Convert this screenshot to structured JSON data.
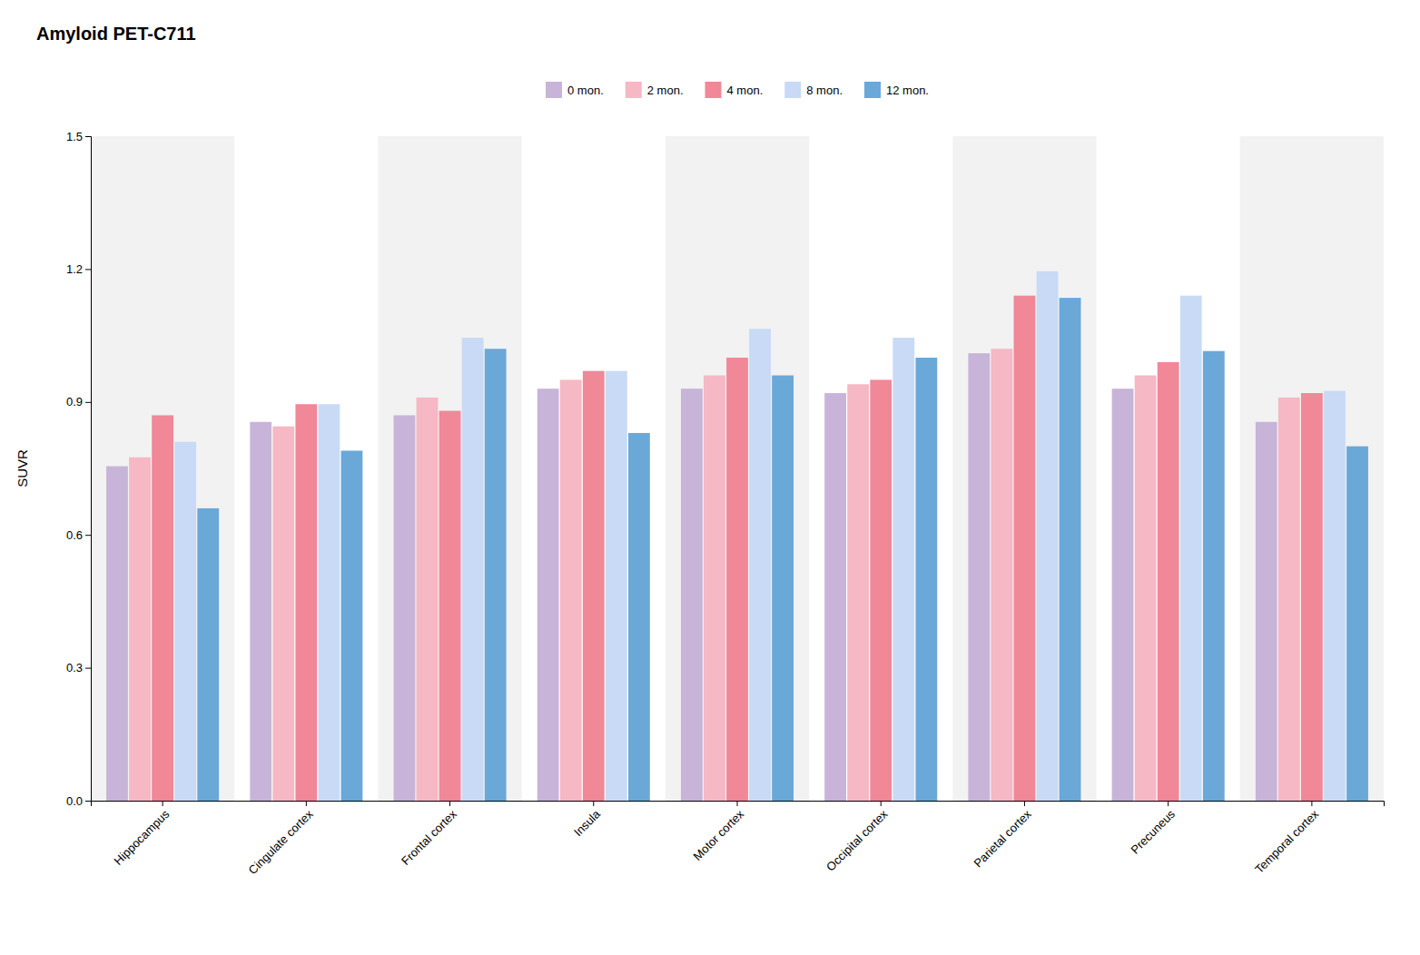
{
  "chart_data": {
    "type": "bar",
    "title": "Amyloid PET-C711",
    "ylabel": "SUVR",
    "categories": [
      "Hippocampus",
      "Cingulate cortex",
      "Frontal cortex",
      "Insula",
      "Motor cortex",
      "Occipital cortex",
      "Parietal cortex",
      "Precuneus",
      "Temporal cortex"
    ],
    "series": [
      {
        "name": "0 mon.",
        "color": "#c8b4d8",
        "values": [
          0.755,
          0.855,
          0.87,
          0.93,
          0.93,
          0.92,
          1.01,
          0.93,
          0.855
        ]
      },
      {
        "name": "2 mon.",
        "color": "#f5b8c4",
        "values": [
          0.775,
          0.845,
          0.91,
          0.95,
          0.96,
          0.94,
          1.02,
          0.96,
          0.91
        ]
      },
      {
        "name": "4 mon.",
        "color": "#f08898",
        "values": [
          0.87,
          0.895,
          0.88,
          0.97,
          1.0,
          0.95,
          1.14,
          0.99,
          0.92
        ]
      },
      {
        "name": "8 mon.",
        "color": "#c8daf5",
        "values": [
          0.81,
          0.895,
          1.045,
          0.97,
          1.065,
          1.045,
          1.195,
          1.14,
          0.925
        ]
      },
      {
        "name": "12 mon.",
        "color": "#6aa8d8",
        "values": [
          0.66,
          0.79,
          1.02,
          0.83,
          0.96,
          1.0,
          1.135,
          1.015,
          0.8
        ]
      }
    ],
    "ylim": [
      0.0,
      1.5
    ],
    "yticks": [
      {
        "value": 0.0,
        "label": "0.0"
      },
      0.3,
      0.6,
      0.9,
      1.2,
      1.5
    ],
    "grid": false,
    "legend": "top"
  }
}
